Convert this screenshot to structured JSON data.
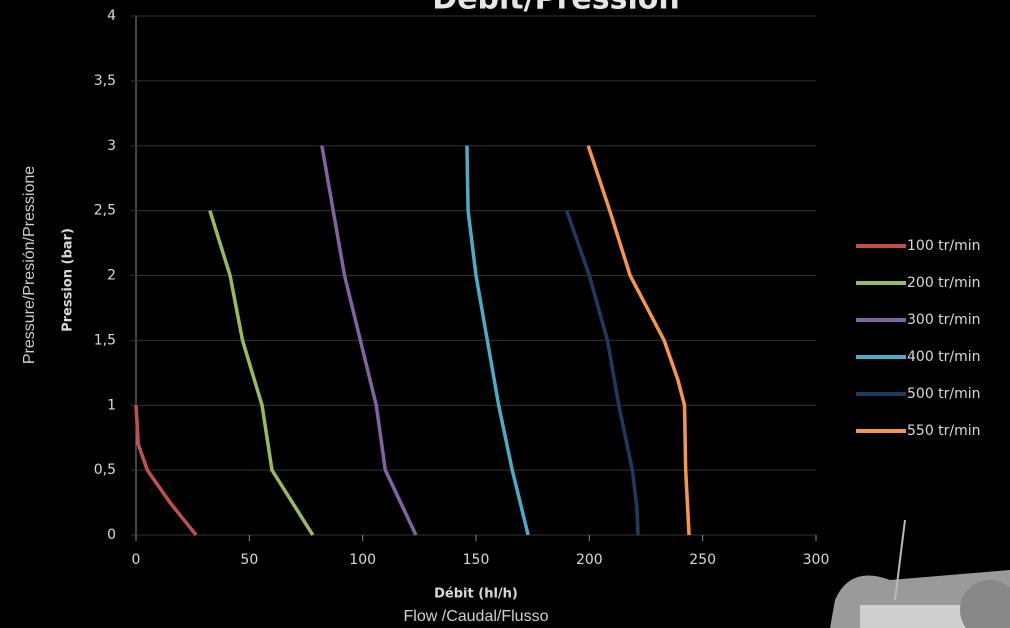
{
  "chart_data": {
    "type": "line",
    "title": "Débit/Pression",
    "x_label": "Débit (hl/h)",
    "x_sublabel": "Flow /Caudal/Flusso",
    "y_label": "Pression (bar)",
    "y_sublabel": "Pressure/Presión/Pressione",
    "xlim": [
      0,
      300
    ],
    "xticks": [
      0,
      50,
      100,
      150,
      200,
      250,
      300
    ],
    "ylim": [
      0,
      4
    ],
    "yticks": [
      0,
      {
        "value": 0.5,
        "label": "0,5"
      },
      1,
      {
        "value": 1.5,
        "label": "1,5"
      },
      2,
      {
        "value": 2.5,
        "label": "2,5"
      },
      3,
      {
        "value": 3.5,
        "label": "3,5"
      },
      4
    ],
    "series": [
      {
        "name": "100 tr/min",
        "color": "#c0504d",
        "x": [
          0,
          1,
          5,
          15,
          26.5
        ],
        "values": [
          1,
          0.7,
          0.5,
          0.25,
          0
        ]
      },
      {
        "name": "200 tr/min",
        "color": "#9bbb59",
        "x": [
          32.6,
          41.5,
          47,
          55.6,
          60,
          78
        ],
        "values": [
          2.5,
          2,
          1.5,
          1,
          0.5,
          0
        ]
      },
      {
        "name": "300 tr/min",
        "color": "#8064a2",
        "x": [
          82,
          92,
          99,
          106,
          110,
          123.5
        ],
        "values": [
          3,
          2,
          1.5,
          1,
          0.5,
          0
        ]
      },
      {
        "name": "400 tr/min",
        "color": "#4bacc6",
        "x": [
          146,
          146.5,
          150,
          155,
          160,
          166,
          173
        ],
        "values": [
          3,
          2.5,
          2,
          1.5,
          1,
          0.5,
          0
        ]
      },
      {
        "name": "500 tr/min",
        "color": "#1f3a5f",
        "x": [
          190,
          200,
          208,
          213,
          219,
          221,
          221.5
        ],
        "values": [
          2.5,
          2,
          1.5,
          1,
          0.5,
          0.2,
          0
        ]
      },
      {
        "name": "550 tr/min",
        "color": "#f79646",
        "x": [
          199.5,
          209,
          218,
          233,
          239,
          242,
          242.5,
          244
        ],
        "values": [
          3,
          2.5,
          2,
          1.5,
          1.2,
          1,
          0.5,
          0
        ]
      }
    ]
  }
}
